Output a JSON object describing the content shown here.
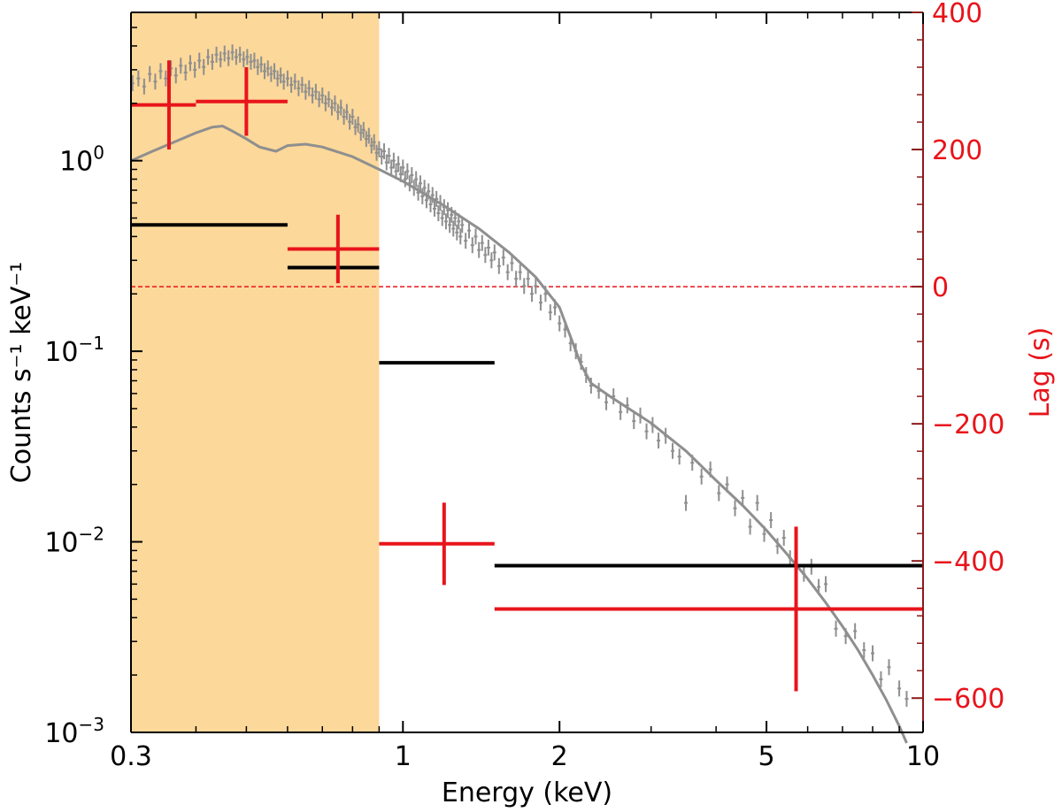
{
  "chart_data": {
    "type": "scatter",
    "title": "",
    "xlabel": "Energy (keV)",
    "ylabel_left": "Counts s⁻¹ keV⁻¹",
    "ylabel_right": "Lag (s)",
    "x_scale": "log",
    "y_left_scale": "log",
    "xlim": [
      0.3,
      10
    ],
    "ylim_left": [
      0.001,
      6
    ],
    "ylim_right": [
      -650,
      400
    ],
    "x_ticks": [
      {
        "value": 0.3,
        "label": "0.3"
      },
      {
        "value": 1,
        "label": "1"
      },
      {
        "value": 2,
        "label": "2"
      },
      {
        "value": 5,
        "label": "5"
      },
      {
        "value": 10,
        "label": "10"
      }
    ],
    "y_left_ticks": [
      {
        "value": 1,
        "base": "10",
        "exp": "0"
      },
      {
        "value": 0.1,
        "base": "10",
        "exp": "−1"
      },
      {
        "value": 0.01,
        "base": "10",
        "exp": "−2"
      },
      {
        "value": 0.001,
        "base": "10",
        "exp": "−3"
      }
    ],
    "y_right_ticks": [
      {
        "value": 400,
        "label": "400"
      },
      {
        "value": 200,
        "label": "200"
      },
      {
        "value": 0,
        "label": "0"
      },
      {
        "value": -200,
        "label": "−200"
      },
      {
        "value": -400,
        "label": "−400"
      },
      {
        "value": -600,
        "label": "−600"
      }
    ],
    "shaded_band": {
      "x_start": 0.3,
      "x_end": 0.9,
      "color": "#fcd89a"
    },
    "zero_line": {
      "lag": 0,
      "color": "#e8141b"
    },
    "model_curve": {
      "color": "#8f8f8f",
      "points": [
        [
          0.3,
          1.0
        ],
        [
          0.33,
          1.12
        ],
        [
          0.37,
          1.28
        ],
        [
          0.4,
          1.4
        ],
        [
          0.43,
          1.5
        ],
        [
          0.45,
          1.52
        ],
        [
          0.47,
          1.43
        ],
        [
          0.5,
          1.3
        ],
        [
          0.53,
          1.18
        ],
        [
          0.57,
          1.12
        ],
        [
          0.6,
          1.2
        ],
        [
          0.65,
          1.22
        ],
        [
          0.7,
          1.18
        ],
        [
          0.8,
          1.05
        ],
        [
          0.9,
          0.9
        ],
        [
          1.0,
          0.78
        ],
        [
          1.2,
          0.58
        ],
        [
          1.4,
          0.44
        ],
        [
          1.6,
          0.33
        ],
        [
          1.8,
          0.245
        ],
        [
          2.0,
          0.17
        ],
        [
          2.2,
          0.085
        ],
        [
          2.3,
          0.068
        ],
        [
          2.5,
          0.058
        ],
        [
          3.0,
          0.042
        ],
        [
          3.5,
          0.03
        ],
        [
          4.0,
          0.021
        ],
        [
          4.5,
          0.0155
        ],
        [
          5.0,
          0.0115
        ],
        [
          5.5,
          0.0085
        ],
        [
          6.0,
          0.0064
        ],
        [
          6.5,
          0.0048
        ],
        [
          7.0,
          0.0036
        ],
        [
          7.5,
          0.0027
        ],
        [
          8.0,
          0.002
        ],
        [
          8.5,
          0.00148
        ],
        [
          9.0,
          0.00108
        ],
        [
          9.3,
          0.00088
        ]
      ]
    },
    "spectrum_data": {
      "color": "#8f8f8f",
      "points": [
        [
          0.302,
          2.55,
          0.3,
          0.3
        ],
        [
          0.31,
          2.7,
          0.3,
          0.3
        ],
        [
          0.318,
          2.45,
          0.3,
          0.3
        ],
        [
          0.326,
          2.85,
          0.3,
          0.3
        ],
        [
          0.334,
          2.6,
          0.3,
          0.3
        ],
        [
          0.342,
          2.95,
          0.3,
          0.3
        ],
        [
          0.35,
          2.7,
          0.3,
          0.3
        ],
        [
          0.358,
          3.05,
          0.3,
          0.3
        ],
        [
          0.366,
          2.8,
          0.3,
          0.3
        ],
        [
          0.374,
          3.15,
          0.3,
          0.3
        ],
        [
          0.382,
          2.9,
          0.3,
          0.3
        ],
        [
          0.39,
          3.25,
          0.3,
          0.3
        ],
        [
          0.398,
          3.0,
          0.3,
          0.3
        ],
        [
          0.406,
          3.35,
          0.3,
          0.3
        ],
        [
          0.414,
          3.1,
          0.3,
          0.3
        ],
        [
          0.422,
          3.5,
          0.3,
          0.3
        ],
        [
          0.43,
          3.3,
          0.3,
          0.3
        ],
        [
          0.438,
          3.6,
          0.3,
          0.3
        ],
        [
          0.446,
          3.4,
          0.3,
          0.3
        ],
        [
          0.454,
          3.65,
          0.3,
          0.3
        ],
        [
          0.462,
          3.45,
          0.3,
          0.3
        ],
        [
          0.47,
          3.7,
          0.3,
          0.3
        ],
        [
          0.478,
          3.5,
          0.3,
          0.3
        ],
        [
          0.486,
          3.6,
          0.3,
          0.3
        ],
        [
          0.494,
          3.4,
          0.3,
          0.3
        ],
        [
          0.502,
          3.5,
          0.3,
          0.3
        ],
        [
          0.51,
          3.3,
          0.3,
          0.3
        ],
        [
          0.518,
          3.35,
          0.3,
          0.3
        ],
        [
          0.526,
          3.1,
          0.3,
          0.3
        ],
        [
          0.534,
          3.2,
          0.3,
          0.3
        ],
        [
          0.542,
          2.95,
          0.3,
          0.3
        ],
        [
          0.55,
          3.05,
          0.3,
          0.3
        ],
        [
          0.558,
          2.85,
          0.3,
          0.3
        ],
        [
          0.566,
          2.95,
          0.3,
          0.3
        ],
        [
          0.574,
          2.7,
          0.3,
          0.3
        ],
        [
          0.582,
          2.8,
          0.3,
          0.3
        ],
        [
          0.59,
          2.6,
          0.3,
          0.3
        ],
        [
          0.6,
          2.7,
          0.3,
          0.3
        ],
        [
          0.61,
          2.5,
          0.3,
          0.3
        ],
        [
          0.62,
          2.6,
          0.3,
          0.3
        ],
        [
          0.63,
          2.4,
          0.3,
          0.3
        ],
        [
          0.64,
          2.5,
          0.3,
          0.3
        ],
        [
          0.65,
          2.3,
          0.3,
          0.3
        ],
        [
          0.66,
          2.4,
          0.3,
          0.3
        ],
        [
          0.67,
          2.2,
          0.3,
          0.3
        ],
        [
          0.68,
          2.3,
          0.3,
          0.3
        ],
        [
          0.69,
          2.1,
          0.3,
          0.3
        ],
        [
          0.7,
          2.2,
          0.3,
          0.3
        ],
        [
          0.71,
          2.0,
          0.3,
          0.3
        ],
        [
          0.72,
          2.1,
          0.3,
          0.3
        ],
        [
          0.73,
          1.9,
          0.3,
          0.3
        ],
        [
          0.74,
          2.0,
          0.3,
          0.3
        ],
        [
          0.75,
          1.8,
          0.3,
          0.3
        ],
        [
          0.76,
          1.9,
          0.3,
          0.3
        ],
        [
          0.77,
          1.7,
          0.3,
          0.3
        ],
        [
          0.78,
          1.8,
          0.3,
          0.3
        ],
        [
          0.79,
          1.6,
          0.3,
          0.3
        ],
        [
          0.8,
          1.7,
          0.3,
          0.3
        ],
        [
          0.81,
          1.5,
          0.3,
          0.3
        ],
        [
          0.82,
          1.55,
          0.3,
          0.3
        ],
        [
          0.83,
          1.4,
          0.3,
          0.3
        ],
        [
          0.84,
          1.45,
          0.3,
          0.3
        ],
        [
          0.85,
          1.3,
          0.3,
          0.3
        ],
        [
          0.86,
          1.35,
          0.3,
          0.3
        ],
        [
          0.87,
          1.2,
          0.3,
          0.3
        ],
        [
          0.88,
          1.25,
          0.3,
          0.3
        ],
        [
          0.89,
          1.1,
          0.3,
          0.3
        ],
        [
          0.9,
          1.15,
          0.3,
          0.3
        ],
        [
          0.91,
          1.05,
          0.3,
          0.3
        ],
        [
          0.92,
          1.12,
          0.3,
          0.3
        ],
        [
          0.93,
          0.98,
          0.3,
          0.3
        ],
        [
          0.94,
          1.06,
          0.3,
          0.3
        ],
        [
          0.95,
          0.92,
          0.3,
          0.3
        ],
        [
          0.96,
          1.0,
          0.3,
          0.3
        ],
        [
          0.97,
          0.88,
          0.3,
          0.3
        ],
        [
          0.98,
          0.96,
          0.3,
          0.3
        ],
        [
          0.99,
          0.85,
          0.3,
          0.3
        ],
        [
          1.0,
          0.92,
          0.3,
          0.3
        ],
        [
          1.01,
          0.8,
          0.3,
          0.3
        ],
        [
          1.02,
          0.88,
          0.3,
          0.3
        ],
        [
          1.03,
          0.76,
          0.3,
          0.3
        ],
        [
          1.04,
          0.84,
          0.3,
          0.3
        ],
        [
          1.05,
          0.72,
          0.3,
          0.3
        ],
        [
          1.06,
          0.8,
          0.3,
          0.3
        ],
        [
          1.07,
          0.68,
          0.3,
          0.3
        ],
        [
          1.08,
          0.76,
          0.3,
          0.3
        ],
        [
          1.09,
          0.65,
          0.3,
          0.3
        ],
        [
          1.1,
          0.72,
          0.3,
          0.3
        ],
        [
          1.11,
          0.62,
          0.3,
          0.3
        ],
        [
          1.12,
          0.69,
          0.3,
          0.3
        ],
        [
          1.13,
          0.59,
          0.3,
          0.3
        ],
        [
          1.14,
          0.66,
          0.3,
          0.3
        ],
        [
          1.15,
          0.56,
          0.3,
          0.3
        ],
        [
          1.16,
          0.63,
          0.3,
          0.3
        ],
        [
          1.17,
          0.53,
          0.3,
          0.3
        ],
        [
          1.18,
          0.6,
          0.3,
          0.3
        ],
        [
          1.19,
          0.5,
          0.3,
          0.3
        ],
        [
          1.2,
          0.57,
          0.3,
          0.3
        ],
        [
          1.21,
          0.48,
          0.3,
          0.3
        ],
        [
          1.22,
          0.55,
          0.3,
          0.3
        ],
        [
          1.23,
          0.46,
          0.3,
          0.3
        ],
        [
          1.24,
          0.52,
          0.3,
          0.3
        ],
        [
          1.25,
          0.44,
          0.3,
          0.3
        ],
        [
          1.26,
          0.5,
          0.3,
          0.3
        ],
        [
          1.27,
          0.42,
          0.3,
          0.3
        ],
        [
          1.28,
          0.48,
          0.3,
          0.3
        ],
        [
          1.29,
          0.4,
          0.3,
          0.3
        ],
        [
          1.3,
          0.46,
          0.3,
          0.3
        ],
        [
          1.32,
          0.38,
          0.3,
          0.3
        ],
        [
          1.34,
          0.43,
          0.3,
          0.3
        ],
        [
          1.36,
          0.36,
          0.3,
          0.3
        ],
        [
          1.38,
          0.4,
          0.3,
          0.3
        ],
        [
          1.4,
          0.34,
          0.3,
          0.3
        ],
        [
          1.42,
          0.37,
          0.3,
          0.3
        ],
        [
          1.44,
          0.32,
          0.3,
          0.3
        ],
        [
          1.46,
          0.35,
          0.3,
          0.3
        ],
        [
          1.48,
          0.3,
          0.3,
          0.3
        ],
        [
          1.5,
          0.33,
          0.3,
          0.3
        ],
        [
          1.53,
          0.28,
          0.3,
          0.3
        ],
        [
          1.56,
          0.31,
          0.3,
          0.3
        ],
        [
          1.59,
          0.26,
          0.3,
          0.3
        ],
        [
          1.62,
          0.29,
          0.3,
          0.3
        ],
        [
          1.65,
          0.24,
          0.3,
          0.3
        ],
        [
          1.68,
          0.26,
          0.3,
          0.3
        ],
        [
          1.71,
          0.22,
          0.3,
          0.3
        ],
        [
          1.74,
          0.24,
          0.3,
          0.3
        ],
        [
          1.77,
          0.2,
          0.3,
          0.3
        ],
        [
          1.8,
          0.22,
          0.3,
          0.3
        ],
        [
          1.84,
          0.18,
          0.3,
          0.3
        ],
        [
          1.88,
          0.2,
          0.3,
          0.3
        ],
        [
          1.92,
          0.16,
          0.3,
          0.3
        ],
        [
          1.96,
          0.17,
          0.3,
          0.3
        ],
        [
          2.0,
          0.14,
          0.3,
          0.3
        ],
        [
          2.05,
          0.13,
          0.3,
          0.3
        ],
        [
          2.1,
          0.11,
          0.3,
          0.3
        ],
        [
          2.15,
          0.1,
          0.3,
          0.3
        ],
        [
          2.2,
          0.088,
          0.3,
          0.3
        ],
        [
          2.25,
          0.075,
          0.3,
          0.3
        ],
        [
          2.3,
          0.066,
          0.3,
          0.3
        ],
        [
          2.38,
          0.062,
          0.3,
          0.3
        ],
        [
          2.46,
          0.054,
          0.3,
          0.3
        ],
        [
          2.54,
          0.058,
          0.3,
          0.3
        ],
        [
          2.62,
          0.048,
          0.3,
          0.3
        ],
        [
          2.7,
          0.052,
          0.3,
          0.3
        ],
        [
          2.78,
          0.043,
          0.3,
          0.3
        ],
        [
          2.86,
          0.046,
          0.3,
          0.3
        ],
        [
          2.94,
          0.038,
          0.3,
          0.3
        ],
        [
          3.02,
          0.041,
          0.3,
          0.3
        ],
        [
          3.1,
          0.034,
          0.3,
          0.3
        ],
        [
          3.2,
          0.036,
          0.3,
          0.3
        ],
        [
          3.3,
          0.03,
          0.3,
          0.3
        ],
        [
          3.4,
          0.028,
          0.3,
          0.3
        ],
        [
          3.5,
          0.016,
          0.25,
          0.25
        ],
        [
          3.6,
          0.026,
          0.3,
          0.3
        ],
        [
          3.75,
          0.022,
          0.3,
          0.3
        ],
        [
          3.9,
          0.024,
          0.3,
          0.3
        ],
        [
          4.05,
          0.018,
          0.3,
          0.3
        ],
        [
          4.2,
          0.02,
          0.3,
          0.3
        ],
        [
          4.35,
          0.015,
          0.3,
          0.3
        ],
        [
          4.5,
          0.017,
          0.3,
          0.3
        ],
        [
          4.65,
          0.012,
          0.3,
          0.3
        ],
        [
          4.8,
          0.016,
          0.3,
          0.3
        ],
        [
          4.95,
          0.011,
          0.3,
          0.3
        ],
        [
          5.1,
          0.013,
          0.3,
          0.3
        ],
        [
          5.25,
          0.0095,
          0.3,
          0.3
        ],
        [
          5.4,
          0.0105,
          0.3,
          0.3
        ],
        [
          5.55,
          0.0082,
          0.3,
          0.3
        ],
        [
          5.7,
          0.0088,
          0.3,
          0.3
        ],
        [
          5.9,
          0.0068,
          0.3,
          0.3
        ],
        [
          6.1,
          0.0074,
          0.3,
          0.3
        ],
        [
          6.3,
          0.0058,
          0.3,
          0.3
        ],
        [
          6.5,
          0.006,
          0.3,
          0.3
        ],
        [
          6.8,
          0.0035,
          0.3,
          0.3
        ],
        [
          7.1,
          0.0032,
          0.3,
          0.3
        ],
        [
          7.4,
          0.0034,
          0.3,
          0.3
        ],
        [
          7.7,
          0.0027,
          0.3,
          0.3
        ],
        [
          8.0,
          0.0026,
          0.3,
          0.3
        ],
        [
          8.3,
          0.0019,
          0.3,
          0.3
        ],
        [
          8.6,
          0.0022,
          0.3,
          0.3
        ],
        [
          9.0,
          0.0017,
          0.3,
          0.3
        ],
        [
          9.3,
          0.0015,
          0.3,
          0.3
        ]
      ]
    },
    "black_bins": [
      {
        "x0": 0.3,
        "x1": 0.6,
        "y": 0.46
      },
      {
        "x0": 0.6,
        "x1": 0.9,
        "y": 0.275
      },
      {
        "x0": 0.9,
        "x1": 1.5,
        "y": 0.087
      },
      {
        "x0": 1.5,
        "x1": 10,
        "y": 0.0075
      }
    ],
    "lag_points": [
      {
        "x": 0.355,
        "x0": 0.3,
        "x1": 0.4,
        "lag": 265,
        "err": 65
      },
      {
        "x": 0.5,
        "x1": 0.6,
        "x0": 0.4,
        "lag": 270,
        "err": 50
      },
      {
        "x": 0.75,
        "x0": 0.6,
        "x1": 0.9,
        "lag": 55,
        "err": 50
      },
      {
        "x": 1.2,
        "x0": 0.9,
        "x1": 1.5,
        "lag": -375,
        "err": 60
      },
      {
        "x": 5.7,
        "x0": 1.5,
        "x1": 10,
        "lag": -470,
        "err": 120
      }
    ],
    "lag_color": "#e8141b",
    "axis_right_color": "#8b1a1a"
  }
}
